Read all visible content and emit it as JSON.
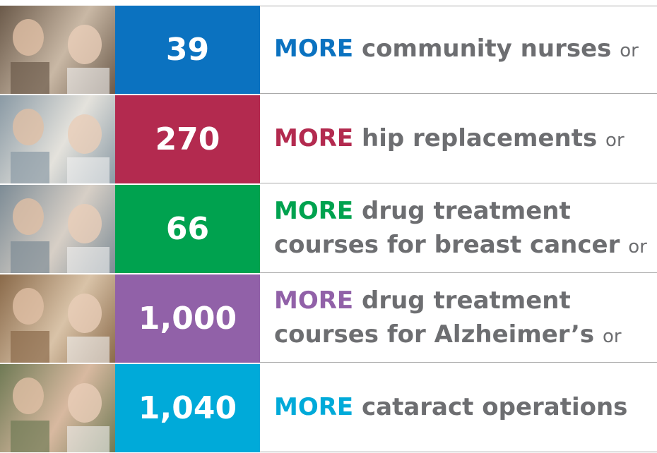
{
  "rows": [
    {
      "number": "39",
      "more": "MORE",
      "text": "community nurses",
      "suffix": "or",
      "color": "#0b72c0"
    },
    {
      "number": "270",
      "more": "MORE",
      "text": "hip replacements",
      "suffix": "or",
      "color": "#b32a4f"
    },
    {
      "number": "66",
      "more": "MORE",
      "text": "drug treatment courses for breast cancer",
      "suffix": "or",
      "color": "#00a24f"
    },
    {
      "number": "1,000",
      "more": "MORE",
      "text": "drug treatment courses for Alzheimer’s",
      "suffix": "or",
      "color": "#9161a8"
    },
    {
      "number": "1,040",
      "more": "MORE",
      "text": "cataract operations",
      "color": "#00aad9"
    }
  ]
}
